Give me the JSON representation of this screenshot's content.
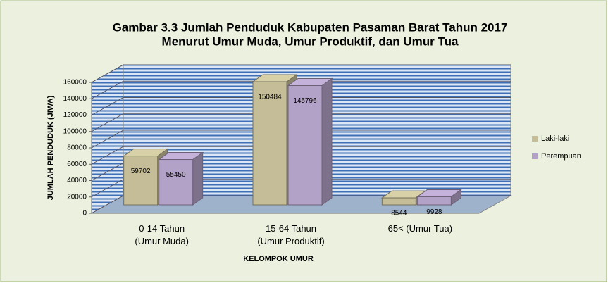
{
  "chart_data": {
    "type": "bar3d",
    "title": "Gambar 3.3 Jumlah Penduduk Kabupaten Pasaman Barat Tahun 2017",
    "subtitle": "Menurut Umur Muda, Umur Produktif, dan Umur Tua",
    "x_label": "KELOMPOK UMUR",
    "y_label": "JUMLAH PENDUDUK (JIWA)",
    "categories": [
      "0-14 Tahun\n(Umur Muda)",
      "15-64 Tahun\n(Umur Produktif)",
      "65< (Umur Tua)"
    ],
    "series": [
      {
        "name": "Laki-laki",
        "color": "#c4bd97",
        "values": [
          59702,
          150484,
          8544
        ]
      },
      {
        "name": "Perempuan",
        "color": "#b3a2c7",
        "values": [
          55450,
          145796,
          9928
        ]
      }
    ],
    "ylim": [
      0,
      160000
    ],
    "yticks": [
      0,
      20000,
      40000,
      60000,
      80000,
      100000,
      120000,
      140000,
      160000
    ],
    "grid": true,
    "legend": "right"
  }
}
